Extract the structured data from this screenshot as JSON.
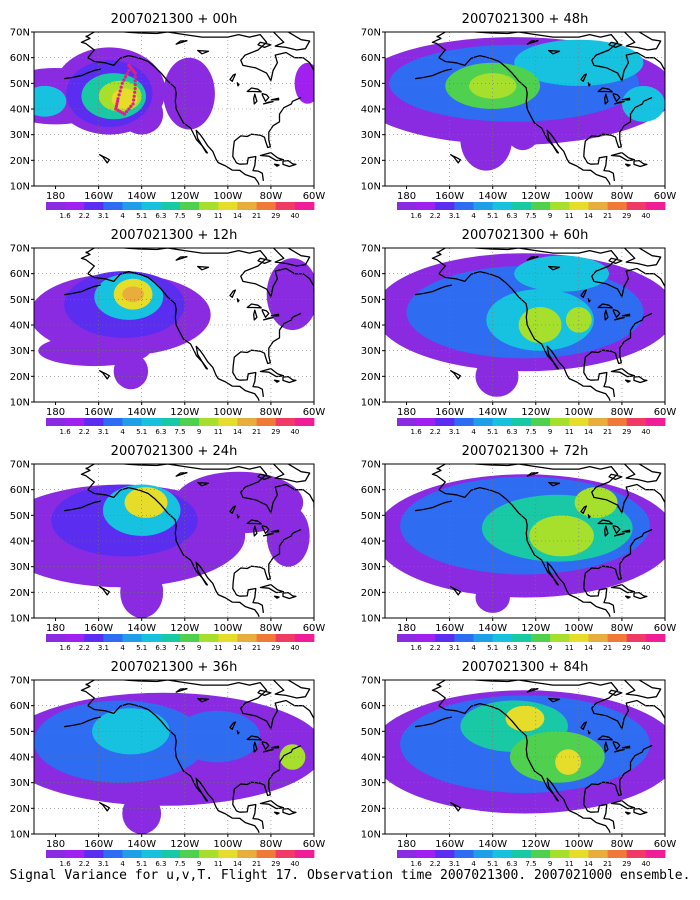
{
  "figure": {
    "caption": "Signal Variance for u,v,T. Flight 17. Observation time 2007021300. 2007021000 ensemble."
  },
  "axes": {
    "lat_labels": [
      "70N",
      "60N",
      "50N",
      "40N",
      "30N",
      "20N",
      "10N"
    ],
    "lon_labels": [
      "180",
      "160W",
      "140W",
      "120W",
      "100W",
      "80W",
      "60W"
    ],
    "lat_range": [
      10,
      70
    ],
    "lon_range": [
      -190,
      -60
    ],
    "grid": "dotted"
  },
  "colorbar": {
    "labels": [
      "1.6",
      "2.2",
      "3.1",
      "4",
      "5.1",
      "6.3",
      "7.5",
      "9",
      "11",
      "14",
      "21",
      "29",
      "40"
    ],
    "colors": [
      "#8a2be2",
      "#a020f0",
      "#5a2df0",
      "#2e6cf2",
      "#1e9fe8",
      "#17c2e0",
      "#19c9a6",
      "#4fd04f",
      "#a6e02d",
      "#e6dc2a",
      "#e8ad3c",
      "#f07838",
      "#f03a66",
      "#f01e96"
    ]
  },
  "panels": [
    {
      "title": "2007021300 + 00h",
      "lead_hours": 0
    },
    {
      "title": "2007021300 + 48h",
      "lead_hours": 48
    },
    {
      "title": "2007021300 + 12h",
      "lead_hours": 12
    },
    {
      "title": "2007021300 + 60h",
      "lead_hours": 60
    },
    {
      "title": "2007021300 + 24h",
      "lead_hours": 24
    },
    {
      "title": "2007021300 + 72h",
      "lead_hours": 72
    },
    {
      "title": "2007021300 + 36h",
      "lead_hours": 36
    },
    {
      "title": "2007021300 + 84h",
      "lead_hours": 84
    }
  ],
  "observation_track": {
    "color": "#e0208a",
    "panel": "2007021300 + 00h",
    "points": [
      {
        "lon": -146,
        "lat": 55
      },
      {
        "lon": -149,
        "lat": 50
      },
      {
        "lon": -151,
        "lat": 44
      },
      {
        "lon": -152,
        "lat": 40
      },
      {
        "lon": -148,
        "lat": 38
      },
      {
        "lon": -144,
        "lat": 42
      },
      {
        "lon": -143,
        "lat": 48
      },
      {
        "lon": -143,
        "lat": 54
      },
      {
        "lon": -146,
        "lat": 57
      }
    ]
  },
  "fields": [
    {
      "panel": "2007021300 + 00h",
      "blobs": [
        {
          "lon": -180,
          "lat": 45,
          "rlon": 28,
          "rlat": 11,
          "level": 0
        },
        {
          "lon": -155,
          "lat": 47,
          "rlon": 26,
          "rlat": 17,
          "level": 0
        },
        {
          "lon": -140,
          "lat": 38,
          "rlon": 10,
          "rlat": 8,
          "level": 0
        },
        {
          "lon": -118,
          "lat": 46,
          "rlon": 12,
          "rlat": 14,
          "level": 0
        },
        {
          "lon": -63,
          "lat": 50,
          "rlon": 6,
          "rlat": 8,
          "level": 1
        },
        {
          "lon": -155,
          "lat": 46,
          "rlon": 20,
          "rlat": 13,
          "level": 2
        },
        {
          "lon": -185,
          "lat": 43,
          "rlon": 10,
          "rlat": 6,
          "level": 5
        },
        {
          "lon": -153,
          "lat": 45,
          "rlon": 15,
          "rlat": 9,
          "level": 6
        },
        {
          "lon": -150,
          "lat": 45,
          "rlon": 10,
          "rlat": 6,
          "level": 8
        },
        {
          "lon": -148,
          "lat": 44,
          "rlon": 6,
          "rlat": 4,
          "level": 9
        }
      ]
    },
    {
      "panel": "2007021300 + 48h",
      "blobs": [
        {
          "lon": -130,
          "lat": 47,
          "rlon": 75,
          "rlat": 21,
          "level": 0
        },
        {
          "lon": -143,
          "lat": 28,
          "rlon": 12,
          "rlat": 12,
          "level": 0
        },
        {
          "lon": -126,
          "lat": 34,
          "rlon": 9,
          "rlat": 10,
          "level": 0
        },
        {
          "lon": -130,
          "lat": 50,
          "rlon": 58,
          "rlat": 15,
          "level": 3
        },
        {
          "lon": -100,
          "lat": 58,
          "rlon": 30,
          "rlat": 9,
          "level": 5
        },
        {
          "lon": -140,
          "lat": 49,
          "rlon": 22,
          "rlat": 9,
          "level": 7
        },
        {
          "lon": -140,
          "lat": 49,
          "rlon": 11,
          "rlat": 5,
          "level": 8
        },
        {
          "lon": -70,
          "lat": 42,
          "rlon": 10,
          "rlat": 7,
          "level": 5
        }
      ]
    },
    {
      "panel": "2007021300 + 12h",
      "blobs": [
        {
          "lon": -150,
          "lat": 44,
          "rlon": 42,
          "rlat": 16,
          "level": 0
        },
        {
          "lon": -162,
          "lat": 30,
          "rlon": 26,
          "rlat": 6,
          "level": 0
        },
        {
          "lon": -145,
          "lat": 22,
          "rlon": 8,
          "rlat": 7,
          "level": 0
        },
        {
          "lon": -70,
          "lat": 52,
          "rlon": 12,
          "rlat": 14,
          "level": 0
        },
        {
          "lon": -148,
          "lat": 48,
          "rlon": 28,
          "rlat": 13,
          "level": 2
        },
        {
          "lon": -146,
          "lat": 51,
          "rlon": 16,
          "rlat": 9,
          "level": 5
        },
        {
          "lon": -144,
          "lat": 52,
          "rlon": 9,
          "rlat": 6,
          "level": 9
        },
        {
          "lon": -144,
          "lat": 52,
          "rlon": 5,
          "rlat": 3,
          "level": 10
        }
      ]
    },
    {
      "panel": "2007021300 + 60h",
      "blobs": [
        {
          "lon": -125,
          "lat": 45,
          "rlon": 70,
          "rlat": 23,
          "level": 0
        },
        {
          "lon": -138,
          "lat": 20,
          "rlon": 10,
          "rlat": 8,
          "level": 0
        },
        {
          "lon": -125,
          "lat": 45,
          "rlon": 55,
          "rlat": 18,
          "level": 3
        },
        {
          "lon": -118,
          "lat": 42,
          "rlon": 25,
          "rlat": 12,
          "level": 5
        },
        {
          "lon": -108,
          "lat": 60,
          "rlon": 22,
          "rlat": 7,
          "level": 5
        },
        {
          "lon": -118,
          "lat": 40,
          "rlon": 10,
          "rlat": 7,
          "level": 8
        },
        {
          "lon": -100,
          "lat": 42,
          "rlon": 6,
          "rlat": 5,
          "level": 8
        }
      ]
    },
    {
      "panel": "2007021300 + 24h",
      "blobs": [
        {
          "lon": -150,
          "lat": 42,
          "rlon": 58,
          "rlat": 20,
          "level": 0
        },
        {
          "lon": -140,
          "lat": 20,
          "rlon": 10,
          "rlat": 10,
          "level": 0
        },
        {
          "lon": -95,
          "lat": 55,
          "rlon": 30,
          "rlat": 12,
          "level": 0
        },
        {
          "lon": -72,
          "lat": 42,
          "rlon": 10,
          "rlat": 12,
          "level": 0
        },
        {
          "lon": -148,
          "lat": 48,
          "rlon": 34,
          "rlat": 14,
          "level": 2
        },
        {
          "lon": -140,
          "lat": 52,
          "rlon": 18,
          "rlat": 10,
          "level": 5
        },
        {
          "lon": -138,
          "lat": 55,
          "rlon": 10,
          "rlat": 6,
          "level": 9
        }
      ]
    },
    {
      "panel": "2007021300 + 72h",
      "blobs": [
        {
          "lon": -125,
          "lat": 42,
          "rlon": 70,
          "rlat": 24,
          "level": 0
        },
        {
          "lon": -140,
          "lat": 18,
          "rlon": 8,
          "rlat": 6,
          "level": 0
        },
        {
          "lon": -125,
          "lat": 46,
          "rlon": 58,
          "rlat": 19,
          "level": 3
        },
        {
          "lon": -110,
          "lat": 45,
          "rlon": 35,
          "rlat": 13,
          "level": 6
        },
        {
          "lon": -108,
          "lat": 42,
          "rlon": 15,
          "rlat": 8,
          "level": 8
        },
        {
          "lon": -92,
          "lat": 55,
          "rlon": 10,
          "rlat": 6,
          "level": 8
        }
      ]
    },
    {
      "panel": "2007021300 + 36h",
      "blobs": [
        {
          "lon": -130,
          "lat": 43,
          "rlon": 75,
          "rlat": 22,
          "level": 0
        },
        {
          "lon": -140,
          "lat": 18,
          "rlon": 9,
          "rlat": 8,
          "level": 0
        },
        {
          "lon": -150,
          "lat": 46,
          "rlon": 40,
          "rlat": 16,
          "level": 3
        },
        {
          "lon": -105,
          "lat": 48,
          "rlon": 20,
          "rlat": 10,
          "level": 3
        },
        {
          "lon": -145,
          "lat": 50,
          "rlon": 18,
          "rlat": 9,
          "level": 5
        },
        {
          "lon": -70,
          "lat": 40,
          "rlon": 6,
          "rlat": 5,
          "level": 8
        }
      ]
    },
    {
      "panel": "2007021300 + 84h",
      "blobs": [
        {
          "lon": -125,
          "lat": 42,
          "rlon": 72,
          "rlat": 24,
          "level": 0
        },
        {
          "lon": -125,
          "lat": 45,
          "rlon": 58,
          "rlat": 19,
          "level": 3
        },
        {
          "lon": -130,
          "lat": 52,
          "rlon": 25,
          "rlat": 10,
          "level": 6
        },
        {
          "lon": -110,
          "lat": 40,
          "rlon": 22,
          "rlat": 10,
          "level": 7
        },
        {
          "lon": -125,
          "lat": 55,
          "rlon": 9,
          "rlat": 5,
          "level": 9
        },
        {
          "lon": -105,
          "lat": 38,
          "rlon": 6,
          "rlat": 5,
          "level": 9
        }
      ]
    }
  ]
}
